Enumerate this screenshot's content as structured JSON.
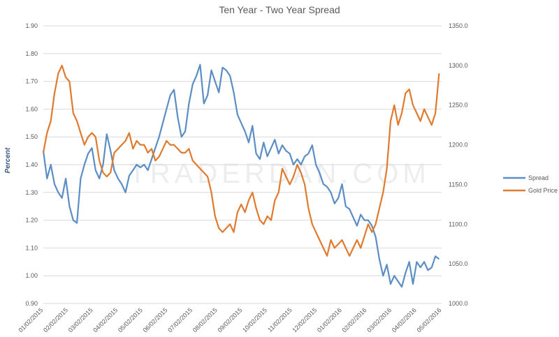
{
  "chart_data": {
    "type": "line",
    "title": "Ten Year - Two Year Spread",
    "ylabel": "Percent",
    "y2label": "",
    "watermark": "TRADERDAN.COM",
    "ylim": [
      0.9,
      1.9
    ],
    "y2lim": [
      1000,
      1350
    ],
    "y_ticks": [
      "0.90",
      "1.00",
      "1.10",
      "1.20",
      "1.30",
      "1.40",
      "1.50",
      "1.60",
      "1.70",
      "1.80",
      "1.90"
    ],
    "y2_ticks": [
      "1000.0",
      "1050.0",
      "1100.0",
      "1150.0",
      "1200.0",
      "1250.0",
      "1300.0",
      "1350.0"
    ],
    "x_ticks": [
      "01/02/2015",
      "02/02/2015",
      "03/02/2015",
      "04/02/2015",
      "05/02/2015",
      "06/02/2015",
      "07/02/2015",
      "08/02/2015",
      "09/02/2015",
      "10/02/2015",
      "11/02/2015",
      "12/02/2015",
      "01/02/2016",
      "02/02/2016",
      "03/02/2016",
      "04/02/2016",
      "05/02/2016"
    ],
    "grid": true,
    "legend_position": "right",
    "series": [
      {
        "name": "Spread",
        "axis": "left",
        "color": "#5b8ec4",
        "x": [
          0,
          0.15,
          0.3,
          0.45,
          0.6,
          0.75,
          0.9,
          1.05,
          1.2,
          1.35,
          1.5,
          1.65,
          1.8,
          1.95,
          2.1,
          2.25,
          2.4,
          2.55,
          2.7,
          2.85,
          3.0,
          3.15,
          3.3,
          3.45,
          3.6,
          3.75,
          3.9,
          4.05,
          4.2,
          4.35,
          4.5,
          4.65,
          4.8,
          4.95,
          5.1,
          5.25,
          5.4,
          5.55,
          5.7,
          5.85,
          6.0,
          6.15,
          6.3,
          6.45,
          6.6,
          6.75,
          6.9,
          7.05,
          7.2,
          7.35,
          7.5,
          7.65,
          7.8,
          7.95,
          8.1,
          8.25,
          8.4,
          8.55,
          8.7,
          8.85,
          9.0,
          9.15,
          9.3,
          9.45,
          9.6,
          9.75,
          9.9,
          10.05,
          10.2,
          10.35,
          10.5,
          10.65,
          10.8,
          10.95,
          11.1,
          11.25,
          11.4,
          11.55,
          11.7,
          11.85,
          12.0,
          12.15,
          12.3,
          12.45,
          12.6,
          12.75,
          12.9,
          13.05,
          13.2,
          13.35,
          13.5,
          13.65,
          13.8,
          13.95,
          14.1,
          14.25,
          14.4,
          14.55,
          14.7,
          14.85,
          15.0,
          15.15,
          15.3,
          15.45,
          15.6,
          15.75,
          15.9
        ],
        "values": [
          1.45,
          1.35,
          1.4,
          1.33,
          1.3,
          1.28,
          1.35,
          1.25,
          1.2,
          1.19,
          1.35,
          1.4,
          1.44,
          1.46,
          1.38,
          1.35,
          1.4,
          1.51,
          1.45,
          1.38,
          1.35,
          1.33,
          1.3,
          1.36,
          1.38,
          1.4,
          1.39,
          1.4,
          1.38,
          1.42,
          1.46,
          1.5,
          1.55,
          1.6,
          1.65,
          1.67,
          1.57,
          1.5,
          1.52,
          1.62,
          1.69,
          1.72,
          1.76,
          1.62,
          1.65,
          1.74,
          1.7,
          1.66,
          1.75,
          1.74,
          1.72,
          1.66,
          1.58,
          1.55,
          1.52,
          1.48,
          1.54,
          1.44,
          1.42,
          1.48,
          1.43,
          1.46,
          1.49,
          1.44,
          1.47,
          1.45,
          1.44,
          1.4,
          1.42,
          1.4,
          1.43,
          1.44,
          1.47,
          1.4,
          1.37,
          1.33,
          1.32,
          1.3,
          1.26,
          1.28,
          1.33,
          1.25,
          1.24,
          1.21,
          1.18,
          1.22,
          1.2,
          1.2,
          1.18,
          1.14,
          1.06,
          1.0,
          1.04,
          0.97,
          1.0,
          0.98,
          0.96,
          1.01,
          1.05,
          0.97,
          1.05,
          1.03,
          1.05,
          1.02,
          1.03,
          1.07,
          1.06
        ]
      },
      {
        "name": "Gold Price",
        "axis": "right",
        "color": "#e07a2e",
        "x": [
          0,
          0.15,
          0.3,
          0.45,
          0.6,
          0.75,
          0.9,
          1.05,
          1.2,
          1.35,
          1.5,
          1.65,
          1.8,
          1.95,
          2.1,
          2.25,
          2.4,
          2.55,
          2.7,
          2.85,
          3.0,
          3.15,
          3.3,
          3.45,
          3.6,
          3.75,
          3.9,
          4.05,
          4.2,
          4.35,
          4.5,
          4.65,
          4.8,
          4.95,
          5.1,
          5.25,
          5.4,
          5.55,
          5.7,
          5.85,
          6.0,
          6.15,
          6.3,
          6.45,
          6.6,
          6.75,
          6.9,
          7.05,
          7.2,
          7.35,
          7.5,
          7.65,
          7.8,
          7.95,
          8.1,
          8.25,
          8.4,
          8.55,
          8.7,
          8.85,
          9.0,
          9.15,
          9.3,
          9.45,
          9.6,
          9.75,
          9.9,
          10.05,
          10.2,
          10.35,
          10.5,
          10.65,
          10.8,
          10.95,
          11.1,
          11.25,
          11.4,
          11.55,
          11.7,
          11.85,
          12.0,
          12.15,
          12.3,
          12.45,
          12.6,
          12.75,
          12.9,
          13.05,
          13.2,
          13.35,
          13.5,
          13.65,
          13.8,
          13.95,
          14.1,
          14.25,
          14.4,
          14.55,
          14.7,
          14.85,
          15.0,
          15.15,
          15.3,
          15.45,
          15.6,
          15.75,
          15.9
        ],
        "values": [
          1190,
          1215,
          1230,
          1265,
          1290,
          1300,
          1285,
          1280,
          1240,
          1230,
          1215,
          1200,
          1210,
          1215,
          1210,
          1180,
          1165,
          1160,
          1165,
          1190,
          1195,
          1200,
          1205,
          1215,
          1195,
          1205,
          1200,
          1200,
          1190,
          1195,
          1180,
          1185,
          1195,
          1205,
          1200,
          1200,
          1195,
          1190,
          1190,
          1195,
          1180,
          1175,
          1170,
          1165,
          1160,
          1140,
          1110,
          1095,
          1090,
          1095,
          1100,
          1090,
          1115,
          1125,
          1115,
          1130,
          1140,
          1120,
          1105,
          1100,
          1110,
          1105,
          1130,
          1140,
          1170,
          1160,
          1150,
          1160,
          1175,
          1165,
          1150,
          1120,
          1100,
          1090,
          1080,
          1070,
          1060,
          1080,
          1070,
          1075,
          1080,
          1070,
          1060,
          1070,
          1080,
          1070,
          1085,
          1100,
          1090,
          1100,
          1120,
          1140,
          1170,
          1230,
          1250,
          1225,
          1240,
          1265,
          1270,
          1250,
          1240,
          1230,
          1245,
          1235,
          1225,
          1240,
          1290
        ]
      }
    ]
  }
}
